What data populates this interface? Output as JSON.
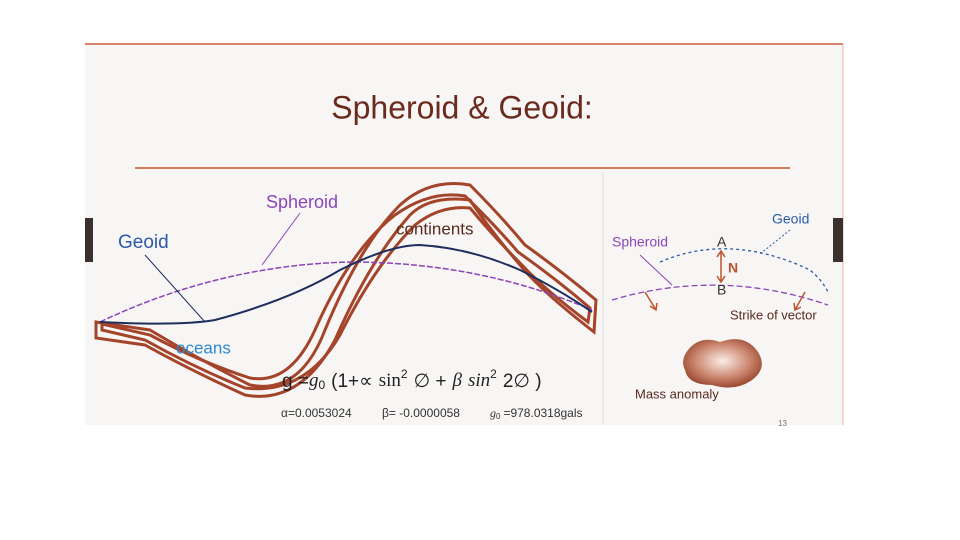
{
  "title": "Spheroid & Geoid:",
  "left_diagram": {
    "spheroid": "Spheroid",
    "geoid": "Geoid",
    "continents": "continents",
    "oceans": "oceans"
  },
  "formula": {
    "lhs": "g =",
    "g0_symbol": "g",
    "g0_sub": "0",
    "open": "(1+∝",
    "sin1": "sin",
    "exp1": "2",
    "phi_plus": "∅ +",
    "beta": "β",
    "sin2": "sin",
    "exp2": "2",
    "two_phi_close": "2∅ )"
  },
  "constants": {
    "alpha": "α=0.0053024",
    "beta": "β= -0.0000058",
    "g0_symbol": "g",
    "g0_sub": "0",
    "g0_value": "=978.0318gals"
  },
  "right_diagram": {
    "geoid": "Geoid",
    "spheroid": "Spheroid",
    "point_a": "A",
    "n": "N",
    "point_b": "B",
    "strike": "Strike of vector",
    "mass_anomaly": "Mass anomaly"
  },
  "page_number": "13"
}
